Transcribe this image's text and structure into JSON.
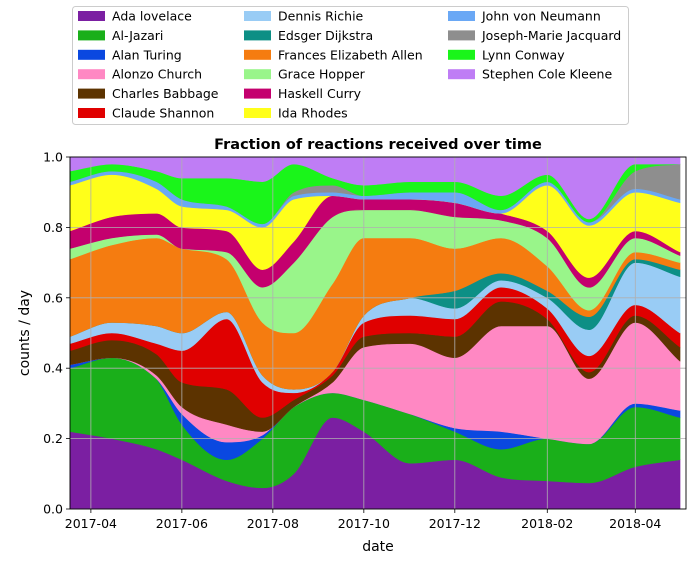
{
  "chart_data": {
    "type": "area",
    "stacked": true,
    "normalized": true,
    "title": "Fraction of reactions received over time",
    "xlabel": "date",
    "ylabel": "counts / day",
    "xlim": [
      "2017-03-18",
      "2018-05-05"
    ],
    "ylim": [
      0,
      1
    ],
    "grid": true,
    "legend_position": "top",
    "x_ticks": [
      "2017-04",
      "2017-06",
      "2017-08",
      "2017-10",
      "2017-12",
      "2018-02",
      "2018-04"
    ],
    "y_ticks": [
      "0.0",
      "0.2",
      "0.4",
      "0.6",
      "0.8",
      "1.0"
    ],
    "x": [
      "2017-03-18",
      "2017-04-15",
      "2017-05-15",
      "2017-06-01",
      "2017-07-01",
      "2017-07-25",
      "2017-08-15",
      "2017-09-10",
      "2017-10-01",
      "2017-11-01",
      "2017-12-01",
      "2018-01-01",
      "2018-02-01",
      "2018-03-01",
      "2018-04-01",
      "2018-05-01"
    ],
    "series": [
      {
        "name": "Ada lovelace",
        "color": "#7b1fa2",
        "values": [
          0.22,
          0.2,
          0.17,
          0.14,
          0.08,
          0.06,
          0.1,
          0.26,
          0.22,
          0.13,
          0.14,
          0.09,
          0.08,
          0.08,
          0.12,
          0.14
        ]
      },
      {
        "name": "Al-Jazari",
        "color": "#1aaf1a",
        "values": [
          0.18,
          0.23,
          0.2,
          0.1,
          0.06,
          0.14,
          0.19,
          0.07,
          0.09,
          0.14,
          0.08,
          0.08,
          0.12,
          0.12,
          0.17,
          0.12
        ]
      },
      {
        "name": "Alan Turing",
        "color": "#0a48e0",
        "values": [
          0.01,
          0.0,
          0.0,
          0.03,
          0.05,
          0.01,
          0.0,
          0.0,
          0.0,
          0.0,
          0.01,
          0.05,
          0.0,
          0.0,
          0.01,
          0.02
        ]
      },
      {
        "name": "Alonzo Church",
        "color": "#ff88c3",
        "values": [
          0.0,
          0.0,
          0.01,
          0.02,
          0.05,
          0.01,
          0.0,
          0.03,
          0.15,
          0.2,
          0.2,
          0.3,
          0.32,
          0.2,
          0.23,
          0.14
        ]
      },
      {
        "name": "Charles Babbage",
        "color": "#5c3300",
        "values": [
          0.04,
          0.05,
          0.06,
          0.07,
          0.1,
          0.04,
          0.02,
          0.02,
          0.03,
          0.03,
          0.06,
          0.07,
          0.02,
          0.02,
          0.02,
          0.04
        ]
      },
      {
        "name": "Claude Shannon",
        "color": "#e00000",
        "values": [
          0.02,
          0.02,
          0.03,
          0.09,
          0.2,
          0.1,
          0.02,
          0.01,
          0.04,
          0.05,
          0.05,
          0.04,
          0.03,
          0.05,
          0.03,
          0.04
        ]
      },
      {
        "name": "Dennis Richie",
        "color": "#99ccf5",
        "values": [
          0.02,
          0.03,
          0.05,
          0.05,
          0.02,
          0.02,
          0.01,
          0.0,
          0.02,
          0.05,
          0.03,
          0.02,
          0.03,
          0.08,
          0.12,
          0.16
        ]
      },
      {
        "name": "Edsger Dijkstra",
        "color": "#0d8f85",
        "values": [
          0.0,
          0.0,
          0.0,
          0.0,
          0.0,
          0.0,
          0.0,
          0.0,
          0.0,
          0.0,
          0.05,
          0.02,
          0.02,
          0.04,
          0.01,
          0.02
        ]
      },
      {
        "name": "Frances Elizabeth Allen",
        "color": "#f57c10",
        "values": [
          0.22,
          0.22,
          0.25,
          0.24,
          0.15,
          0.15,
          0.16,
          0.25,
          0.22,
          0.17,
          0.12,
          0.1,
          0.07,
          0.02,
          0.02,
          0.02
        ]
      },
      {
        "name": "Grace Hopper",
        "color": "#99f58a",
        "values": [
          0.03,
          0.02,
          0.01,
          0.0,
          0.02,
          0.1,
          0.2,
          0.19,
          0.08,
          0.08,
          0.09,
          0.05,
          0.08,
          0.07,
          0.04,
          0.02
        ]
      },
      {
        "name": "Haskell Curry",
        "color": "#c4006e",
        "values": [
          0.05,
          0.06,
          0.06,
          0.06,
          0.06,
          0.05,
          0.06,
          0.06,
          0.03,
          0.03,
          0.04,
          0.02,
          0.02,
          0.03,
          0.02,
          0.01
        ]
      },
      {
        "name": "Ida Rhodes",
        "color": "#ffff1a",
        "values": [
          0.13,
          0.12,
          0.07,
          0.06,
          0.06,
          0.12,
          0.12,
          0.0,
          0.0,
          0.0,
          0.0,
          0.0,
          0.13,
          0.16,
          0.11,
          0.14
        ]
      },
      {
        "name": "John von Neumann",
        "color": "#6aa8f5",
        "values": [
          0.01,
          0.01,
          0.02,
          0.02,
          0.01,
          0.01,
          0.01,
          0.01,
          0.01,
          0.02,
          0.03,
          0.01,
          0.01,
          0.01,
          0.01,
          0.01
        ]
      },
      {
        "name": "Joseph-Marie Jacquard",
        "color": "#8e8e8e",
        "values": [
          0.0,
          0.0,
          0.0,
          0.0,
          0.0,
          0.0,
          0.01,
          0.02,
          0.0,
          0.0,
          0.0,
          0.0,
          0.0,
          0.0,
          0.05,
          0.1
        ]
      },
      {
        "name": "Lynn Conway",
        "color": "#1af51a",
        "values": [
          0.03,
          0.02,
          0.03,
          0.06,
          0.08,
          0.12,
          0.08,
          0.02,
          0.03,
          0.03,
          0.03,
          0.04,
          0.02,
          0.01,
          0.02,
          0.0
        ]
      },
      {
        "name": "Stephen Cole Kleene",
        "color": "#bf7df5",
        "values": [
          0.04,
          0.02,
          0.04,
          0.06,
          0.06,
          0.07,
          0.02,
          0.06,
          0.08,
          0.07,
          0.07,
          0.11,
          0.05,
          0.19,
          0.02,
          0.02
        ]
      }
    ]
  }
}
